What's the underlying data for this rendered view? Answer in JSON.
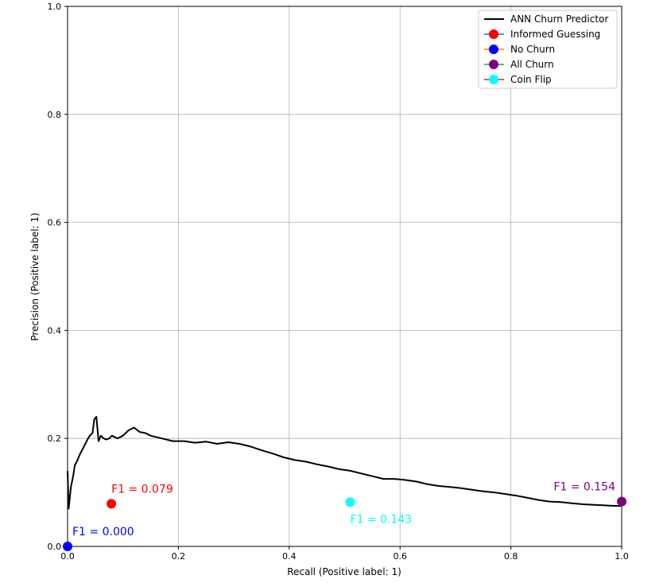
{
  "chart_data": {
    "type": "line",
    "xlabel": "Recall (Positive label: 1)",
    "ylabel": "Precision (Positive label: 1)",
    "xlim": [
      0,
      1
    ],
    "ylim": [
      0,
      1
    ],
    "x_ticks": [
      "0.0",
      "0.2",
      "0.4",
      "0.6",
      "0.8",
      "1.0"
    ],
    "y_ticks": [
      "0.0",
      "0.2",
      "0.4",
      "0.6",
      "0.8",
      "1.0"
    ],
    "grid": true,
    "legend_position": "top-right",
    "series": [
      {
        "name": "ANN Churn Predictor",
        "color": "#000000",
        "points": [
          [
            0.0,
            0.14
          ],
          [
            0.002,
            0.07
          ],
          [
            0.006,
            0.11
          ],
          [
            0.01,
            0.13
          ],
          [
            0.013,
            0.15
          ],
          [
            0.018,
            0.16
          ],
          [
            0.022,
            0.17
          ],
          [
            0.027,
            0.18
          ],
          [
            0.032,
            0.19
          ],
          [
            0.037,
            0.2
          ],
          [
            0.04,
            0.205
          ],
          [
            0.045,
            0.21
          ],
          [
            0.048,
            0.235
          ],
          [
            0.052,
            0.24
          ],
          [
            0.056,
            0.195
          ],
          [
            0.06,
            0.205
          ],
          [
            0.065,
            0.2
          ],
          [
            0.07,
            0.198
          ],
          [
            0.075,
            0.2
          ],
          [
            0.08,
            0.205
          ],
          [
            0.09,
            0.2
          ],
          [
            0.1,
            0.205
          ],
          [
            0.11,
            0.215
          ],
          [
            0.12,
            0.22
          ],
          [
            0.13,
            0.212
          ],
          [
            0.14,
            0.21
          ],
          [
            0.15,
            0.205
          ],
          [
            0.17,
            0.2
          ],
          [
            0.19,
            0.195
          ],
          [
            0.21,
            0.195
          ],
          [
            0.23,
            0.192
          ],
          [
            0.25,
            0.194
          ],
          [
            0.27,
            0.19
          ],
          [
            0.29,
            0.193
          ],
          [
            0.31,
            0.19
          ],
          [
            0.33,
            0.185
          ],
          [
            0.35,
            0.178
          ],
          [
            0.37,
            0.172
          ],
          [
            0.39,
            0.165
          ],
          [
            0.41,
            0.16
          ],
          [
            0.43,
            0.157
          ],
          [
            0.45,
            0.152
          ],
          [
            0.47,
            0.148
          ],
          [
            0.49,
            0.143
          ],
          [
            0.51,
            0.14
          ],
          [
            0.53,
            0.135
          ],
          [
            0.55,
            0.13
          ],
          [
            0.57,
            0.125
          ],
          [
            0.59,
            0.125
          ],
          [
            0.61,
            0.123
          ],
          [
            0.63,
            0.12
          ],
          [
            0.65,
            0.115
          ],
          [
            0.67,
            0.112
          ],
          [
            0.69,
            0.11
          ],
          [
            0.71,
            0.108
          ],
          [
            0.73,
            0.105
          ],
          [
            0.75,
            0.102
          ],
          [
            0.77,
            0.1
          ],
          [
            0.79,
            0.097
          ],
          [
            0.81,
            0.094
          ],
          [
            0.83,
            0.09
          ],
          [
            0.85,
            0.086
          ],
          [
            0.87,
            0.083
          ],
          [
            0.89,
            0.082
          ],
          [
            0.91,
            0.08
          ],
          [
            0.93,
            0.078
          ],
          [
            0.95,
            0.077
          ],
          [
            0.97,
            0.076
          ],
          [
            0.99,
            0.075
          ],
          [
            1.0,
            0.075
          ]
        ]
      }
    ],
    "points": [
      {
        "name": "Informed Guessing",
        "x": 0.079,
        "y": 0.079,
        "color": "#ff0000",
        "line_color": "#1f77b4",
        "annotation": "F1 = 0.079",
        "annotation_color": "#ff0000"
      },
      {
        "name": "No Churn",
        "x": 0.0,
        "y": 0.0,
        "color": "#0000ff",
        "line_color": "#ff7f0e",
        "annotation": "F1 = 0.000",
        "annotation_color": "#0000ff"
      },
      {
        "name": "All Churn",
        "x": 1.0,
        "y": 0.083,
        "color": "#800080",
        "line_color": "#2ca02c",
        "annotation": "F1 = 0.154",
        "annotation_color": "#800080"
      },
      {
        "name": "Coin Flip",
        "x": 0.51,
        "y": 0.082,
        "color": "#00ffff",
        "line_color": "#d62728",
        "annotation": "F1 = 0.143",
        "annotation_color": "#00ffff"
      }
    ]
  }
}
